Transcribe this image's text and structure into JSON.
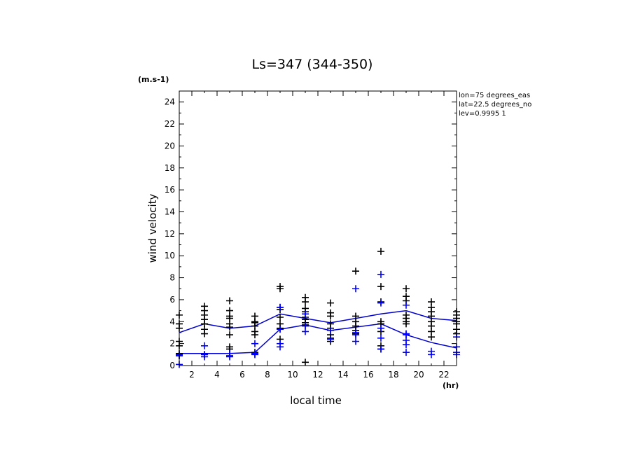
{
  "chart_data": {
    "type": "scatter",
    "title": "Ls=347 (344-350)",
    "xlabel": "local time",
    "ylabel": "wind velocity",
    "x_unit": "(hr)",
    "y_unit": "(m.s-1)",
    "info_lines": [
      "lon=75 degrees_eas",
      "lat=22.5 degrees_no",
      "lev=0.9995 1"
    ],
    "xlim": [
      1,
      23
    ],
    "ylim": [
      0,
      25
    ],
    "x_ticks": [
      2,
      4,
      6,
      8,
      10,
      12,
      14,
      16,
      18,
      20,
      22
    ],
    "y_ticks": [
      0,
      2,
      4,
      6,
      8,
      10,
      12,
      14,
      16,
      18,
      20,
      22,
      24
    ],
    "grid": false,
    "series": [
      {
        "kind": "markers",
        "color": "#000000",
        "points": [
          [
            1,
            4.6
          ],
          [
            1,
            3.8
          ],
          [
            1,
            3.4
          ],
          [
            1,
            2.2
          ],
          [
            1,
            1.8
          ],
          [
            1,
            1.1
          ],
          [
            1,
            0.9
          ],
          [
            3,
            5.4
          ],
          [
            3,
            5.0
          ],
          [
            3,
            4.6
          ],
          [
            3,
            4.2
          ],
          [
            3,
            3.8
          ],
          [
            3,
            3.3
          ],
          [
            3,
            2.9
          ],
          [
            3,
            1.0
          ],
          [
            5,
            5.9
          ],
          [
            5,
            5.0
          ],
          [
            5,
            4.5
          ],
          [
            5,
            4.3
          ],
          [
            5,
            3.8
          ],
          [
            5,
            3.5
          ],
          [
            5,
            2.8
          ],
          [
            5,
            1.7
          ],
          [
            5,
            1.5
          ],
          [
            5,
            1.1
          ],
          [
            7,
            4.5
          ],
          [
            7,
            4.0
          ],
          [
            7,
            3.9
          ],
          [
            7,
            3.6
          ],
          [
            7,
            3.1
          ],
          [
            7,
            2.8
          ],
          [
            7,
            1.2
          ],
          [
            9,
            7.2
          ],
          [
            9,
            7.0
          ],
          [
            9,
            5.3
          ],
          [
            9,
            5.1
          ],
          [
            9,
            4.4
          ],
          [
            9,
            3.8
          ],
          [
            9,
            3.4
          ],
          [
            9,
            2.4
          ],
          [
            11,
            6.2
          ],
          [
            11,
            5.8
          ],
          [
            11,
            5.2
          ],
          [
            11,
            4.9
          ],
          [
            11,
            4.4
          ],
          [
            11,
            4.2
          ],
          [
            11,
            3.9
          ],
          [
            11,
            3.7
          ],
          [
            11,
            0.3
          ],
          [
            13,
            5.7
          ],
          [
            13,
            4.8
          ],
          [
            13,
            4.5
          ],
          [
            13,
            3.8
          ],
          [
            13,
            3.4
          ],
          [
            13,
            2.8
          ],
          [
            13,
            2.5
          ],
          [
            13,
            2.2
          ],
          [
            15,
            8.6
          ],
          [
            15,
            4.5
          ],
          [
            15,
            4.0
          ],
          [
            15,
            3.6
          ],
          [
            15,
            3.2
          ],
          [
            15,
            2.9
          ],
          [
            17,
            10.4
          ],
          [
            17,
            7.2
          ],
          [
            17,
            5.8
          ],
          [
            17,
            4.0
          ],
          [
            17,
            3.8
          ],
          [
            17,
            3.1
          ],
          [
            17,
            1.8
          ],
          [
            17,
            1.5
          ],
          [
            19,
            7.0
          ],
          [
            19,
            6.3
          ],
          [
            19,
            5.9
          ],
          [
            19,
            4.6
          ],
          [
            19,
            4.3
          ],
          [
            19,
            4.0
          ],
          [
            19,
            3.8
          ],
          [
            21,
            5.8
          ],
          [
            21,
            5.3
          ],
          [
            21,
            4.9
          ],
          [
            21,
            4.5
          ],
          [
            21,
            4.0
          ],
          [
            21,
            3.6
          ],
          [
            21,
            3.1
          ],
          [
            21,
            2.6
          ],
          [
            23,
            4.9
          ],
          [
            23,
            4.6
          ],
          [
            23,
            4.3
          ],
          [
            23,
            4.0
          ],
          [
            23,
            3.8
          ],
          [
            23,
            3.3
          ],
          [
            23,
            2.9
          ]
        ]
      },
      {
        "kind": "markers",
        "color": "#0000ff",
        "points": [
          [
            1,
            1.0
          ],
          [
            1,
            0.9
          ],
          [
            1,
            0.1
          ],
          [
            3,
            1.8
          ],
          [
            3,
            1.0
          ],
          [
            3,
            0.8
          ],
          [
            5,
            1.1
          ],
          [
            5,
            0.9
          ],
          [
            5,
            0.8
          ],
          [
            7,
            2.0
          ],
          [
            7,
            1.1
          ],
          [
            7,
            1.0
          ],
          [
            9,
            5.3
          ],
          [
            9,
            3.3
          ],
          [
            9,
            2.0
          ],
          [
            9,
            1.7
          ],
          [
            11,
            4.7
          ],
          [
            11,
            3.6
          ],
          [
            11,
            3.1
          ],
          [
            13,
            3.2
          ],
          [
            13,
            2.4
          ],
          [
            15,
            7.0
          ],
          [
            15,
            3.0
          ],
          [
            15,
            2.8
          ],
          [
            15,
            2.2
          ],
          [
            17,
            8.3
          ],
          [
            17,
            5.7
          ],
          [
            17,
            3.4
          ],
          [
            17,
            2.5
          ],
          [
            17,
            1.5
          ],
          [
            19,
            5.5
          ],
          [
            19,
            2.9
          ],
          [
            19,
            2.8
          ],
          [
            19,
            2.3
          ],
          [
            19,
            1.9
          ],
          [
            19,
            1.2
          ],
          [
            21,
            1.3
          ],
          [
            21,
            1.0
          ],
          [
            23,
            2.6
          ],
          [
            23,
            1.7
          ],
          [
            23,
            1.2
          ],
          [
            23,
            1.0
          ]
        ]
      },
      {
        "kind": "line",
        "color": "#0000cc",
        "x": [
          1,
          3,
          5,
          7,
          9,
          11,
          13,
          15,
          17,
          19,
          21,
          23
        ],
        "values": [
          3.0,
          3.8,
          3.4,
          3.6,
          4.7,
          4.3,
          3.9,
          4.3,
          4.7,
          5.0,
          4.3,
          4.1
        ]
      },
      {
        "kind": "line",
        "color": "#0000cc",
        "x": [
          1,
          3,
          5,
          7,
          9,
          11,
          13,
          15,
          17,
          19,
          21,
          23
        ],
        "values": [
          1.1,
          1.1,
          1.1,
          1.2,
          3.3,
          3.7,
          3.2,
          3.5,
          3.8,
          2.8,
          2.1,
          1.6
        ]
      }
    ]
  }
}
